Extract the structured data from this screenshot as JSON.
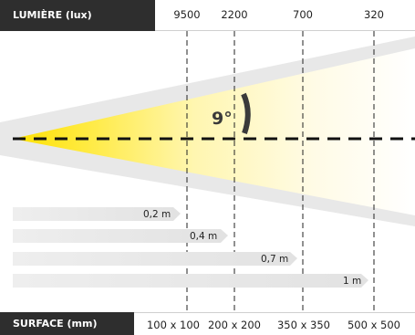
{
  "header": {
    "label": "LUMIÈRE (lux)",
    "values": [
      "9500",
      "2200",
      "700",
      "320"
    ]
  },
  "footer": {
    "label": "SURFACE (mm)",
    "values": [
      "100 x 100",
      "200 x 200",
      "350 x 350",
      "500 x 500"
    ]
  },
  "beam": {
    "angle_label": "9°",
    "color_hot": "#ffe100",
    "color_fade": "#ffffff",
    "cone_grey": "#e6e6e6"
  },
  "distances": [
    "0,2 m",
    "0,4 m",
    "0,7 m",
    "1 m"
  ]
}
